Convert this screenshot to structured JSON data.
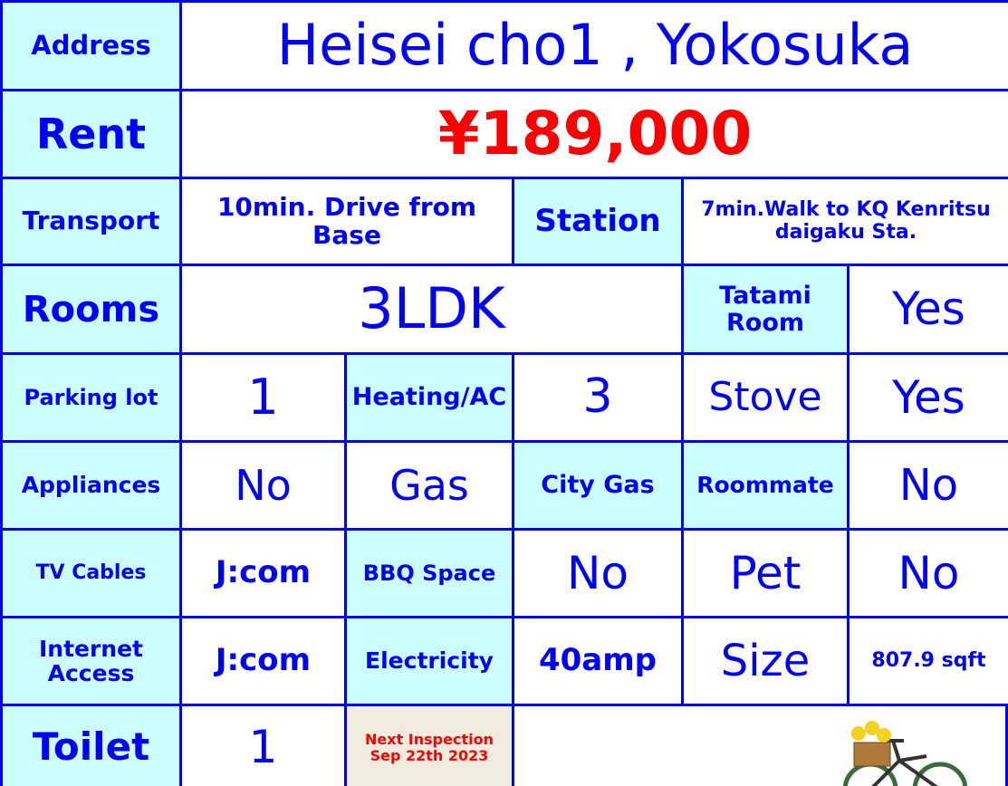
{
  "table": {
    "rows": [
      [
        "Address",
        "Heisei cho1 , Yokosuka"
      ],
      [
        "Rent",
        "¥189,000"
      ],
      [
        "Transport",
        "10min. Drive from Base",
        "Station",
        "7min.Walk to KQ Kenritsu daigaku Sta."
      ],
      [
        "Rooms",
        "3LDK",
        "Tatami Room",
        "Yes"
      ],
      [
        "Parking lot",
        "1",
        "Heating/AC",
        "3",
        "Stove",
        "Yes"
      ],
      [
        "Appliances",
        "No",
        "Gas",
        "City Gas",
        "Roommate",
        "No"
      ],
      [
        "TV Cables",
        "J:com",
        "BBQ Space",
        "No",
        "Pet",
        "No"
      ],
      [
        "Internet Access",
        "J:com",
        "Electricity",
        "40amp",
        "Size",
        "807.9 sqft"
      ],
      [
        "Toilet",
        "1",
        "Next Inspection Sep 22th 2023"
      ]
    ]
  }
}
